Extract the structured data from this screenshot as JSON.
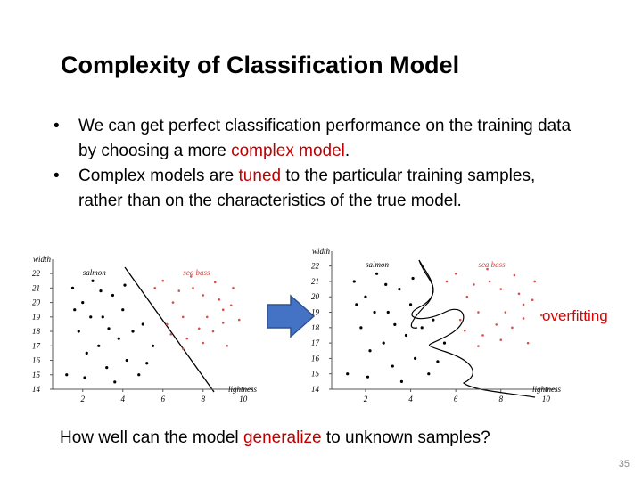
{
  "title": "Complexity of Classification Model",
  "bullets": [
    [
      "We can get perfect classification performance on the training data by choosing a more ",
      "complex model",
      "."
    ],
    [
      "Complex models are ",
      "tuned",
      " to the particular training samples, rather than on the characteristics of the true model."
    ]
  ],
  "plots": {
    "ylabel": "width",
    "xlabel": "lightness",
    "class_labels": [
      "salmon",
      "sea bass"
    ],
    "xlim": [
      0.5,
      10.5
    ],
    "ylim": [
      14,
      22.5
    ],
    "xticks": [
      2,
      4,
      6,
      8,
      10
    ],
    "yticks": [
      14,
      15,
      16,
      17,
      18,
      19,
      20,
      21,
      22
    ],
    "salmon": {
      "x": [
        1.5,
        2,
        2.5,
        3,
        1.8,
        2.2,
        3.5,
        4,
        4.5,
        1.2,
        2.8,
        3.2,
        3.8,
        4.2,
        5,
        5.5,
        2.4,
        3.6,
        4.8,
        1.6,
        2.9,
        4.1,
        5.2,
        3.3,
        2.1
      ],
      "y": [
        21,
        20,
        21.5,
        19,
        18,
        16.5,
        20.5,
        19.5,
        18,
        15,
        17,
        15.5,
        17.5,
        16,
        18.5,
        17,
        19,
        14.5,
        15,
        19.5,
        20.8,
        21.2,
        15.8,
        18.2,
        14.8
      ]
    },
    "sea_bass": {
      "x": [
        6,
        6.5,
        7,
        7.5,
        8,
        8.5,
        9,
        9.5,
        6.2,
        7.2,
        8.2,
        9.2,
        6.8,
        7.8,
        8.8,
        9.8,
        7.4,
        8.6,
        6.4,
        9.4,
        5.6,
        7,
        8,
        9
      ],
      "y": [
        21.5,
        20,
        19,
        21,
        20.5,
        18,
        19.5,
        21,
        18.5,
        17.5,
        19,
        17,
        20.8,
        18.2,
        20.2,
        18.8,
        21.8,
        21.4,
        17.8,
        19.8,
        21,
        16.8,
        17.2,
        18.6
      ]
    }
  },
  "overfitting_label": "overfitting",
  "question": [
    "How well can the model ",
    "generalize",
    " to unknown samples?"
  ],
  "page_number": 35
}
